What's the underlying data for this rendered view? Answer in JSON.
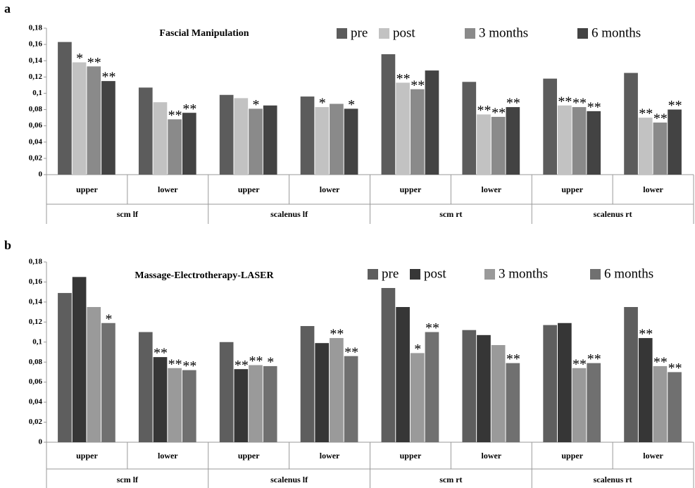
{
  "chart_data": [
    {
      "type": "bar",
      "panel": "a",
      "title": "Fascial Manipulation",
      "categories": [
        "upper",
        "lower",
        "upper",
        "lower",
        "upper",
        "lower",
        "upper",
        "lower"
      ],
      "groups": [
        "scm lf",
        "scalenus lf",
        "scm rt",
        "scalenus rt"
      ],
      "ylim": [
        0,
        0.18
      ],
      "yticks": [
        0,
        {
          "value": 0.02,
          "label": "0,02"
        },
        {
          "value": 0.04,
          "label": "0,04"
        },
        {
          "value": 0.06,
          "label": "0,06"
        },
        {
          "value": 0.08,
          "label": "0,08"
        },
        {
          "value": 0.1,
          "label": "0,1"
        },
        {
          "value": 0.12,
          "label": "0,12"
        },
        {
          "value": 0.14,
          "label": "0,14"
        },
        {
          "value": 0.16,
          "label": "0,16"
        },
        {
          "value": 0.18,
          "label": "0,18"
        }
      ],
      "legend": "top-right",
      "series": [
        {
          "name": "pre",
          "color": "#5c5c5c",
          "values": [
            0.163,
            0.107,
            0.098,
            0.096,
            0.148,
            0.114,
            0.118,
            0.125
          ],
          "annotations": [
            null,
            null,
            null,
            null,
            null,
            null,
            null,
            null
          ]
        },
        {
          "name": "post",
          "color": "#c2c2c2",
          "values": [
            0.138,
            0.089,
            0.094,
            0.083,
            0.113,
            0.074,
            0.085,
            0.07
          ],
          "annotations": [
            "*",
            null,
            null,
            "*",
            "**",
            "**",
            "**",
            "**"
          ]
        },
        {
          "name": "3 months",
          "color": "#8a8a8a",
          "values": [
            0.133,
            0.068,
            0.081,
            0.087,
            0.105,
            0.071,
            0.083,
            0.064
          ],
          "annotations": [
            "**",
            "**",
            "*",
            null,
            "**",
            "**",
            "**",
            "**"
          ]
        },
        {
          "name": "6 months",
          "color": "#434343",
          "values": [
            0.115,
            0.076,
            0.085,
            0.081,
            0.128,
            0.083,
            0.078,
            0.08
          ],
          "annotations": [
            "**",
            "**",
            null,
            "*",
            null,
            "**",
            "**",
            "**"
          ]
        }
      ]
    },
    {
      "type": "bar",
      "panel": "b",
      "title": "Massage-Electrotherapy-LASER",
      "categories": [
        "upper",
        "lower",
        "upper",
        "lower",
        "upper",
        "lower",
        "upper",
        "lower"
      ],
      "groups": [
        "scm lf",
        "scalenus lf",
        "scm rt",
        "scalenus rt"
      ],
      "ylim": [
        0,
        0.18
      ],
      "yticks": [
        0,
        {
          "value": 0.02,
          "label": "0,02"
        },
        {
          "value": 0.04,
          "label": "0,04"
        },
        {
          "value": 0.06,
          "label": "0,06"
        },
        {
          "value": 0.08,
          "label": "0,08"
        },
        {
          "value": 0.1,
          "label": "0,1"
        },
        {
          "value": 0.12,
          "label": "0,12"
        },
        {
          "value": 0.14,
          "label": "0,14"
        },
        {
          "value": 0.16,
          "label": "0,16"
        },
        {
          "value": 0.18,
          "label": "0,18"
        }
      ],
      "legend": "top-right",
      "series": [
        {
          "name": "pre",
          "color": "#5e5e5e",
          "values": [
            0.149,
            0.11,
            0.1,
            0.116,
            0.154,
            0.112,
            0.117,
            0.135
          ],
          "annotations": [
            null,
            null,
            null,
            null,
            null,
            null,
            null,
            null
          ]
        },
        {
          "name": "post",
          "color": "#363636",
          "values": [
            0.165,
            0.085,
            0.073,
            0.099,
            0.135,
            0.107,
            0.119,
            0.104
          ],
          "annotations": [
            null,
            "**",
            "**",
            null,
            null,
            null,
            null,
            "**"
          ]
        },
        {
          "name": "3 months",
          "color": "#9a9a9a",
          "values": [
            0.135,
            0.074,
            0.077,
            0.104,
            0.089,
            0.097,
            0.074,
            0.076
          ],
          "annotations": [
            null,
            "**",
            "**",
            "**",
            "*",
            null,
            "**",
            "**"
          ]
        },
        {
          "name": "6 months",
          "color": "#707070",
          "values": [
            0.119,
            0.072,
            0.076,
            0.086,
            0.11,
            0.079,
            0.079,
            0.07
          ],
          "annotations": [
            "*",
            "**",
            "*",
            "**",
            "**",
            "**",
            "**",
            "**"
          ]
        }
      ]
    }
  ]
}
